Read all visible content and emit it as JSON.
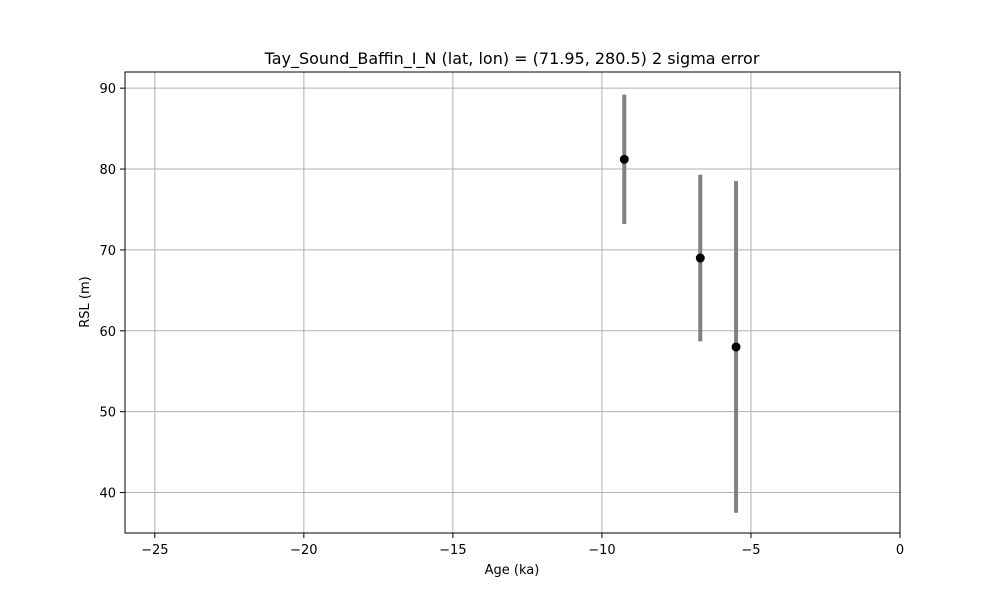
{
  "chart_data": {
    "type": "scatter",
    "title": "Tay_Sound_Baffin_I_N (lat, lon) = (71.95, 280.5)  2 sigma error",
    "xlabel": "Age (ka)",
    "ylabel": "RSL (m)",
    "xlim": [
      -26,
      0
    ],
    "ylim": [
      35,
      92
    ],
    "x_ticks": [
      -25,
      -20,
      -15,
      -10,
      -5,
      0
    ],
    "y_ticks": [
      40,
      50,
      60,
      70,
      80,
      90
    ],
    "x_tick_labels": [
      "−25",
      "−20",
      "−15",
      "−10",
      "−5",
      "0"
    ],
    "y_tick_labels": [
      "40",
      "50",
      "60",
      "70",
      "80",
      "90"
    ],
    "grid": true,
    "legend": false,
    "series": [
      {
        "points": [
          {
            "x": -9.25,
            "y": 81.2,
            "err_low": 73.2,
            "err_high": 89.2
          },
          {
            "x": -6.7,
            "y": 69.0,
            "err_low": 58.7,
            "err_high": 79.3
          },
          {
            "x": -5.5,
            "y": 58.0,
            "err_low": 37.5,
            "err_high": 78.5
          }
        ]
      }
    ],
    "colors": {
      "marker": "#000000",
      "errorbar": "#808080",
      "grid": "#b0b0b0",
      "axes": "#000000"
    }
  }
}
